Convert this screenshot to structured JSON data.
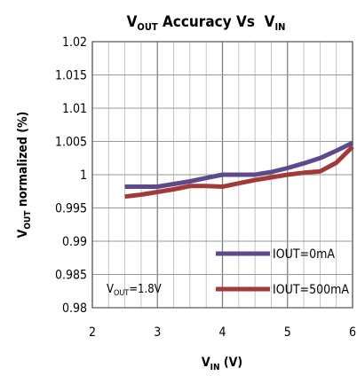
{
  "chart_data": {
    "type": "line",
    "title": {
      "prefix": "V",
      "prefix_sub": "OUT",
      "middle": " Accuracy Vs  V",
      "suffix_sub": "IN"
    },
    "xlabel": {
      "main": "V",
      "sub": "IN",
      "rest": " (V)"
    },
    "ylabel": {
      "main": "V",
      "sub": "OUT",
      "rest": " normalized (%)"
    },
    "xlim": [
      2,
      6
    ],
    "ylim": [
      0.98,
      1.02
    ],
    "x_ticks": [
      "2",
      "3",
      "4",
      "5",
      "6"
    ],
    "y_ticks": [
      "1.02",
      "1.015",
      "1.01",
      "1.005",
      "1",
      "0.995",
      "0.99",
      "0.985",
      "0.98"
    ],
    "grid": true,
    "legend_placement": "bottom-right",
    "annotation": {
      "main": "V",
      "sub": "OUT",
      "rest": "=1.8V"
    },
    "series": [
      {
        "name": "IOUT=0mA",
        "color": "#5c4a8a",
        "x": [
          2.5,
          2.75,
          3.0,
          3.25,
          3.5,
          3.75,
          4.0,
          4.25,
          4.5,
          4.75,
          5.0,
          5.25,
          5.5,
          5.75,
          6.0
        ],
        "y": [
          0.9982,
          0.9982,
          0.9982,
          0.9986,
          0.999,
          0.9995,
          1.0,
          1.0,
          1.0,
          1.0004,
          1.001,
          1.0017,
          1.0025,
          1.0036,
          1.0048
        ]
      },
      {
        "name": "IOUT=500mA",
        "color": "#a33a3a",
        "x": [
          2.5,
          2.75,
          3.0,
          3.25,
          3.5,
          3.75,
          4.0,
          4.25,
          4.5,
          4.75,
          5.0,
          5.25,
          5.5,
          5.75,
          6.0
        ],
        "y": [
          0.9967,
          0.997,
          0.9974,
          0.9978,
          0.9983,
          0.9983,
          0.9982,
          0.9987,
          0.9992,
          0.9996,
          1.0,
          1.0003,
          1.0005,
          1.0018,
          1.0042
        ]
      }
    ]
  }
}
